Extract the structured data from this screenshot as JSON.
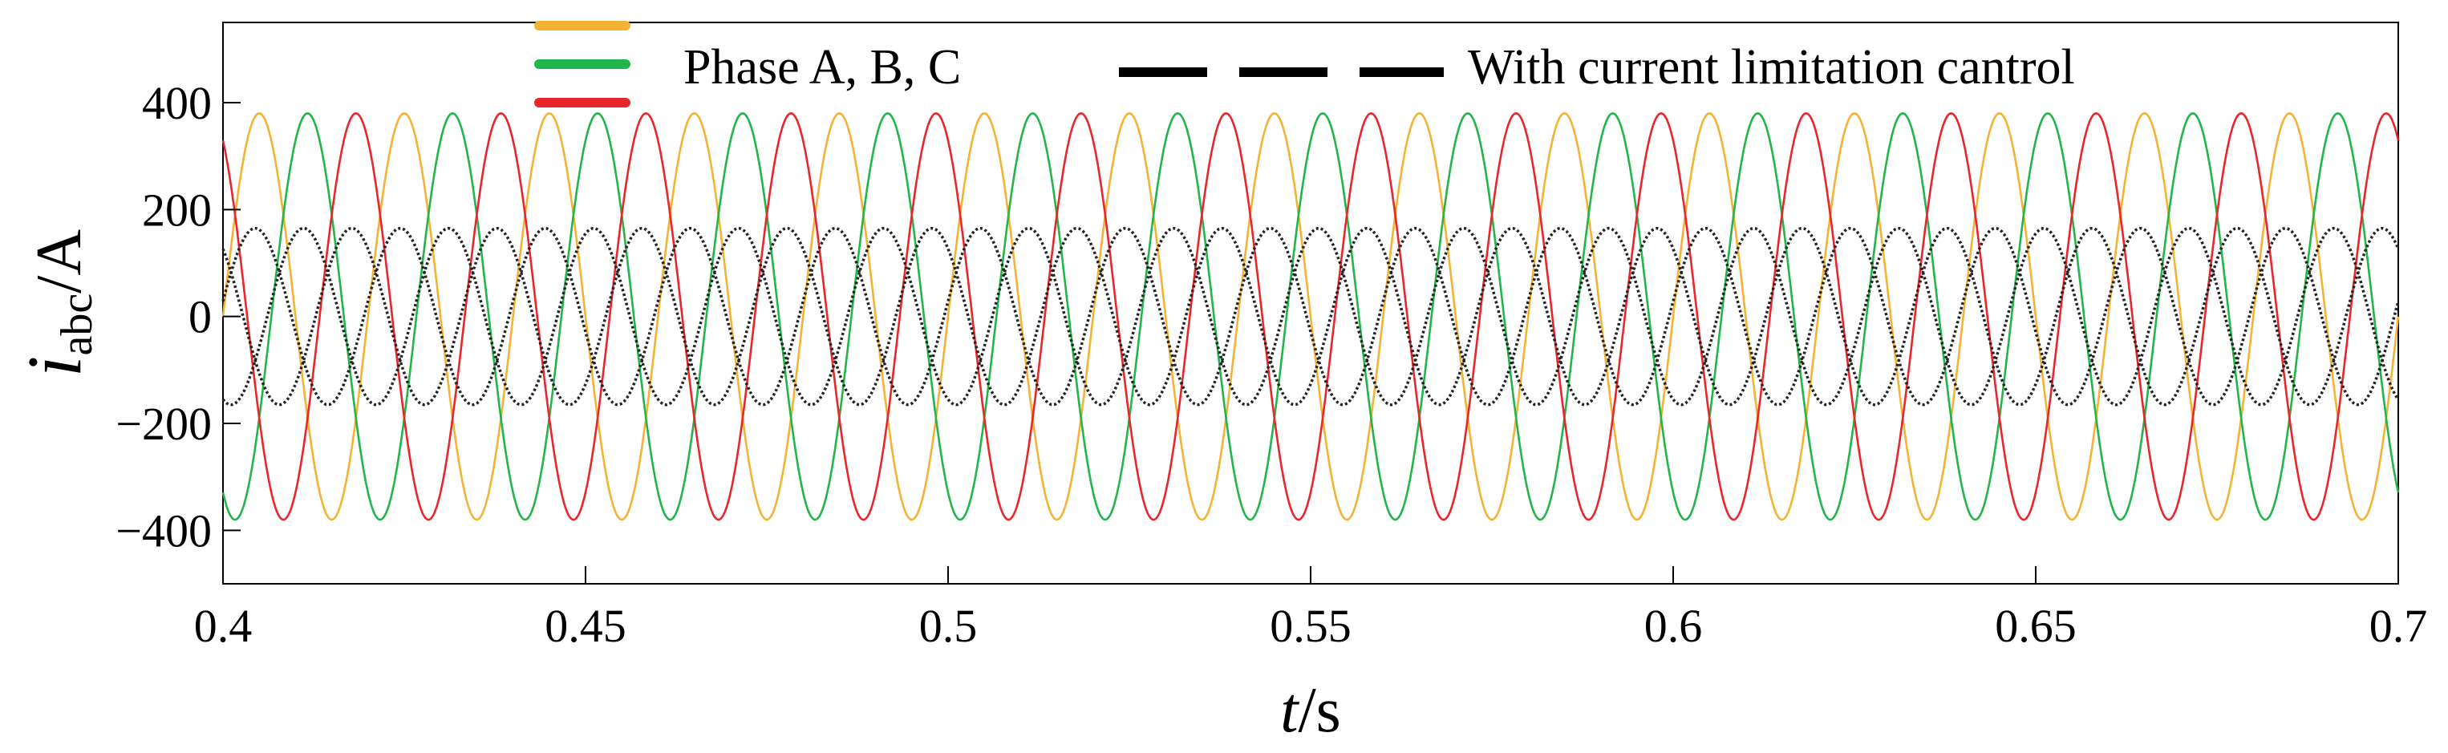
{
  "chart_data": {
    "type": "line",
    "title": "",
    "xlabel_italic": "t",
    "xlabel_rest": "/s",
    "ylabel_italic": "i",
    "ylabel_sub": "abc",
    "ylabel_rest": "/A",
    "xlim": [
      0.4,
      0.7
    ],
    "ylim": [
      -500,
      550
    ],
    "xticks": [
      0.4,
      0.45,
      0.5,
      0.55,
      0.6,
      0.65,
      0.7
    ],
    "xtick_labels": [
      "0.4",
      "0.45",
      "0.5",
      "0.55",
      "0.6",
      "0.65",
      "0.7"
    ],
    "yticks": [
      400,
      200,
      0,
      -200,
      -400
    ],
    "ytick_labels": [
      "400",
      "200",
      "0",
      "−200",
      "−400"
    ],
    "frequency_hz": 50,
    "grid": false,
    "legend": {
      "placement": "top",
      "entries": [
        {
          "label": "Phase A, B, C",
          "colors": [
            "#F5B335",
            "#21B54A",
            "#E8262B"
          ],
          "style": "solid"
        },
        {
          "label": "With current limitation cantrol",
          "colors": [
            "#000000"
          ],
          "style": "dashed"
        }
      ]
    },
    "series": [
      {
        "name": "Phase A",
        "color": "#F5B335",
        "style": "solid",
        "amplitude": 380,
        "phase_deg": 0
      },
      {
        "name": "Phase B",
        "color": "#21B54A",
        "style": "solid",
        "amplitude": 380,
        "phase_deg": -120
      },
      {
        "name": "Phase C",
        "color": "#E8262B",
        "style": "solid",
        "amplitude": 380,
        "phase_deg": 120
      },
      {
        "name": "Phase A (With current limitation cantrol)",
        "color": "#222222",
        "style": "dotted",
        "amplitude": 165,
        "phase_deg": 10
      },
      {
        "name": "Phase B (With current limitation cantrol)",
        "color": "#222222",
        "style": "dotted",
        "amplitude": 165,
        "phase_deg": -110
      },
      {
        "name": "Phase C (With current limitation cantrol)",
        "color": "#222222",
        "style": "dotted",
        "amplitude": 165,
        "phase_deg": 130
      }
    ]
  }
}
